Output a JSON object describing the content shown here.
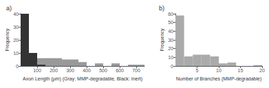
{
  "chart_data": [
    {
      "type": "histogram",
      "title": "a)",
      "xlabel": "Axon Length (μm) (Gray: MMP-degradable, Black: Inert)",
      "ylabel": "Frequency",
      "bins": [
        0,
        50,
        100,
        150,
        200,
        250,
        300,
        350,
        400,
        450,
        500,
        550,
        600,
        650,
        700,
        750
      ],
      "series": [
        {
          "color": "#999999",
          "values": [
            38,
            9,
            6,
            6,
            6,
            5,
            5,
            3,
            0,
            2,
            0,
            2,
            0,
            1,
            1
          ]
        },
        {
          "color": "#333333",
          "values": [
            40,
            10,
            1,
            0,
            0,
            0,
            0,
            0,
            0,
            0,
            0,
            0,
            0,
            0,
            0
          ]
        }
      ],
      "xlim": [
        0,
        750
      ],
      "ylim": [
        0,
        40
      ],
      "xticks": [
        100,
        200,
        300,
        400,
        500,
        600,
        700
      ],
      "yticks": [
        0,
        10,
        20,
        30,
        40
      ],
      "grid": false
    },
    {
      "type": "histogram",
      "title": "b)",
      "xlabel": "Number of Branches (MMP-degradable)",
      "ylabel": "Frequency",
      "bins": [
        0,
        2,
        4,
        6,
        8,
        10,
        12,
        14,
        16,
        18,
        20
      ],
      "values": [
        58,
        11,
        13,
        13,
        11,
        3,
        4,
        0,
        0,
        1
      ],
      "color": "#aaaaaa",
      "xlim": [
        0,
        20
      ],
      "ylim": [
        0,
        60
      ],
      "xticks": [
        5,
        10,
        15,
        20
      ],
      "yticks": [
        0,
        10,
        20,
        30,
        40,
        50,
        60
      ],
      "grid": false
    }
  ]
}
